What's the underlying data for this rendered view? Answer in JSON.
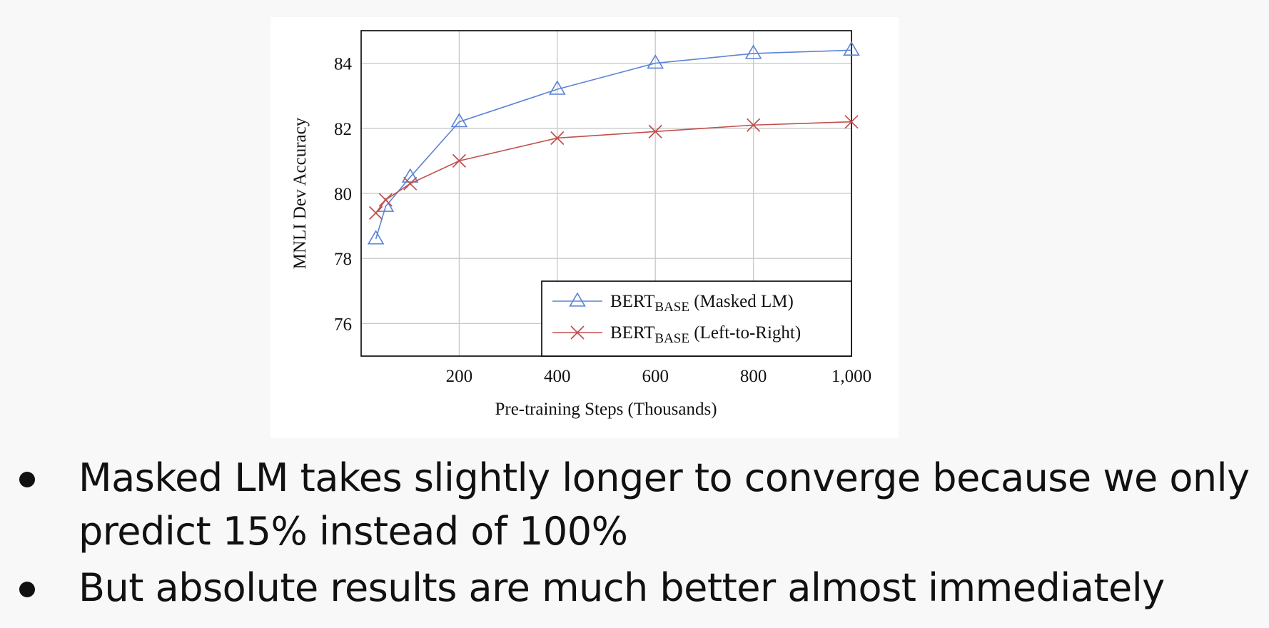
{
  "chart_data": {
    "type": "line",
    "xlabel": "Pre-training Steps (Thousands)",
    "ylabel": "MNLI Dev Accuracy",
    "xlim": [
      0,
      1000
    ],
    "ylim": [
      75,
      85
    ],
    "x_ticks": [
      200,
      400,
      600,
      800,
      1000
    ],
    "x_tick_labels": [
      "200",
      "400",
      "600",
      "800",
      "1,000"
    ],
    "y_ticks": [
      76,
      78,
      80,
      82,
      84
    ],
    "y_tick_labels": [
      "76",
      "78",
      "80",
      "82",
      "84"
    ],
    "grid": true,
    "legend_position": "bottom-right",
    "series": [
      {
        "name": "BERT",
        "name_subscript": "BASE",
        "name_suffix": " (Masked LM)",
        "marker": "triangle",
        "color": "#5b84d6",
        "x": [
          30,
          50,
          100,
          200,
          400,
          600,
          800,
          1000
        ],
        "y": [
          78.6,
          79.6,
          80.5,
          82.2,
          83.2,
          84.0,
          84.3,
          84.4
        ]
      },
      {
        "name": "BERT",
        "name_subscript": "BASE",
        "name_suffix": " (Left-to-Right)",
        "marker": "x",
        "color": "#c0504d",
        "x": [
          30,
          50,
          100,
          200,
          400,
          600,
          800,
          1000
        ],
        "y": [
          79.4,
          79.8,
          80.3,
          81.0,
          81.7,
          81.9,
          82.1,
          82.2
        ]
      }
    ]
  },
  "bullets": [
    "Masked LM takes slightly longer to converge because we only predict 15% instead of 100%",
    "But absolute results are much better almost immediately"
  ]
}
